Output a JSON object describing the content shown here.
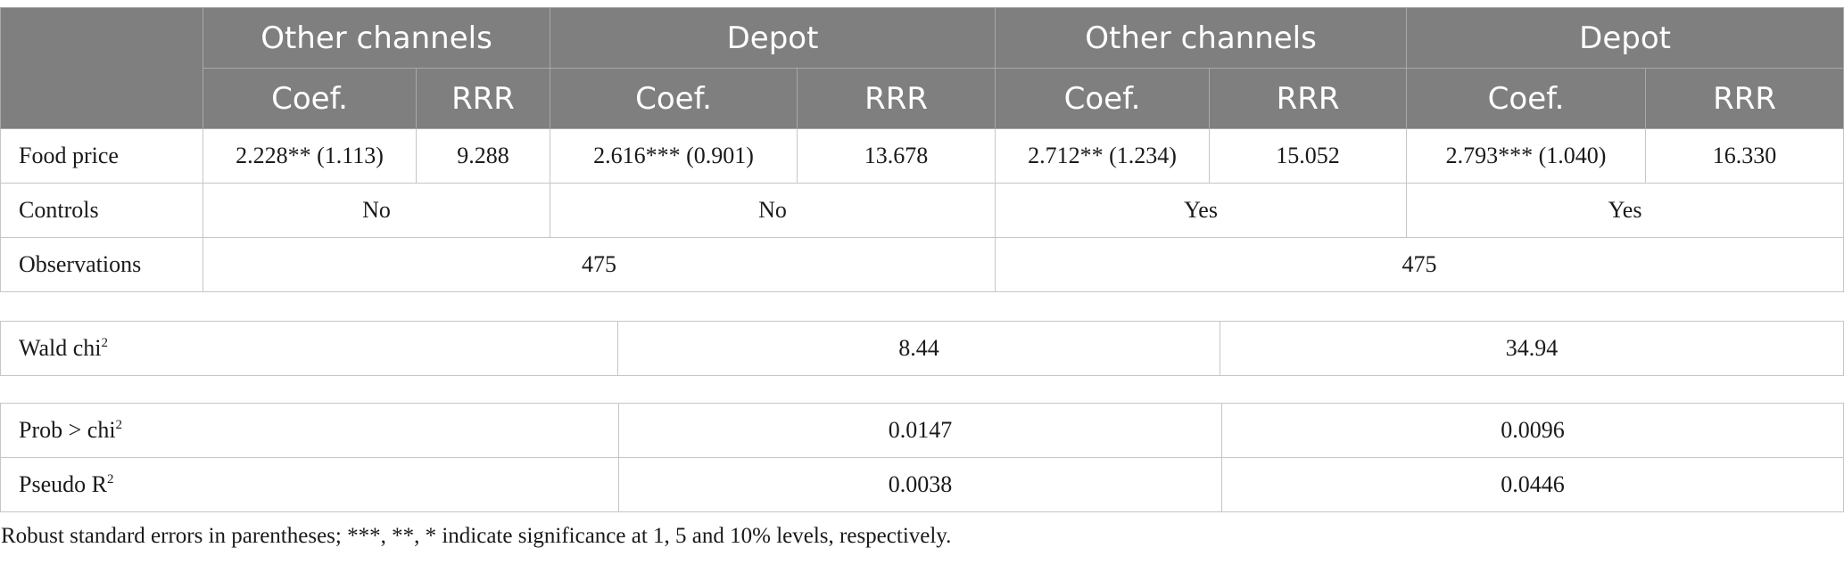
{
  "header": {
    "groups": [
      "Other channels",
      "Depot",
      "Other channels",
      "Depot"
    ],
    "sub": [
      "Coef.",
      "RRR",
      "Coef.",
      "RRR",
      "Coef.",
      "RRR",
      "Coef.",
      "RRR"
    ]
  },
  "rows": {
    "food_price": {
      "label": "Food price",
      "values": [
        "2.228** (1.113)",
        "9.288",
        "2.616*** (0.901)",
        "13.678",
        "2.712** (1.234)",
        "15.052",
        "2.793*** (1.040)",
        "16.330"
      ]
    },
    "controls": {
      "label": "Controls",
      "values": [
        "No",
        "No",
        "Yes",
        "Yes"
      ]
    },
    "observations": {
      "label": "Observations",
      "values": [
        "475",
        "475"
      ]
    }
  },
  "stats": {
    "wald": {
      "label": "Wald chi",
      "sup": "2",
      "values": [
        "8.44",
        "34.94"
      ]
    },
    "prob": {
      "label": "Prob > chi",
      "sup": "2",
      "values": [
        "0.0147",
        "0.0096"
      ]
    },
    "pseudo": {
      "label": "Pseudo R",
      "sup": "2",
      "values": [
        "0.0038",
        "0.0446"
      ]
    }
  },
  "footnote": "Robust standard errors in parentheses; ***, **, * indicate significance at 1, 5 and 10% levels, respectively.",
  "colors": {
    "header_bg": "#7f7f7f",
    "header_text": "#ffffff",
    "border": "#c6c6c6"
  }
}
